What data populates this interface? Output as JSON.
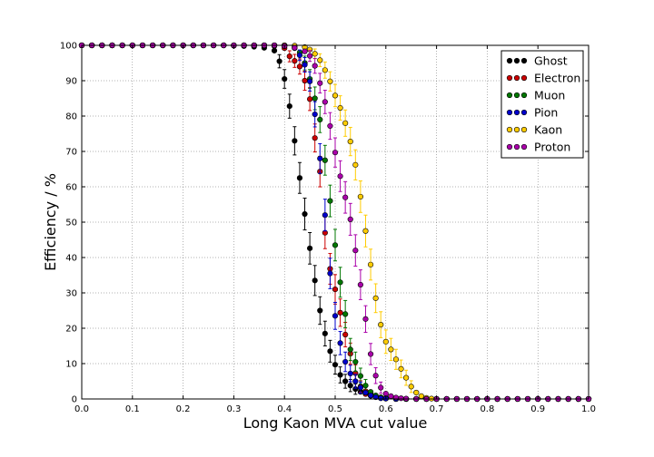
{
  "chart_data": {
    "type": "scatter",
    "title": "",
    "xlabel": "Long Kaon MVA cut value",
    "ylabel": "Efficiency / %",
    "xlim": [
      0.0,
      1.0
    ],
    "ylim": [
      0,
      100
    ],
    "xticks": [
      "0.0",
      "0.1",
      "0.2",
      "0.3",
      "0.4",
      "0.5",
      "0.6",
      "0.7",
      "0.8",
      "0.9",
      "1.0"
    ],
    "yticks": [
      "0",
      "10",
      "20",
      "30",
      "40",
      "50",
      "60",
      "70",
      "80",
      "90",
      "100"
    ],
    "grid": true,
    "legend_position": "top-right",
    "series": [
      {
        "name": "Ghost",
        "color": "#000000",
        "x": [
          0.0,
          0.02,
          0.04,
          0.06,
          0.08,
          0.1,
          0.12,
          0.14,
          0.16,
          0.18,
          0.2,
          0.22,
          0.24,
          0.26,
          0.28,
          0.3,
          0.32,
          0.34,
          0.36,
          0.38,
          0.39,
          0.4,
          0.41,
          0.42,
          0.43,
          0.44,
          0.45,
          0.46,
          0.47,
          0.48,
          0.49,
          0.5,
          0.51,
          0.52,
          0.53,
          0.54,
          0.55,
          0.56,
          0.57,
          0.58,
          0.59,
          0.6,
          0.62,
          0.64,
          0.66,
          0.68,
          0.7,
          0.72,
          0.74,
          0.76,
          0.78,
          0.8,
          0.82,
          0.84,
          0.86,
          0.88,
          0.9,
          0.92,
          0.94,
          0.96,
          0.98,
          1.0
        ],
        "y": [
          100,
          100,
          100,
          100,
          100,
          100,
          100,
          100,
          100,
          100,
          100,
          100,
          100,
          100,
          100,
          99.9,
          99.8,
          99.6,
          99.3,
          98.5,
          95.5,
          90.5,
          82.8,
          73.0,
          62.5,
          52.3,
          42.6,
          33.5,
          25.0,
          18.5,
          13.5,
          9.7,
          6.8,
          5.0,
          3.8,
          2.8,
          2.0,
          1.4,
          0.9,
          0.6,
          0.3,
          0.1,
          0,
          0,
          0,
          0,
          0,
          0,
          0,
          0,
          0,
          0,
          0,
          0,
          0,
          0,
          0,
          0,
          0,
          0,
          0,
          0
        ]
      },
      {
        "name": "Electron",
        "color": "#cc0000",
        "x": [
          0.0,
          0.02,
          0.04,
          0.06,
          0.08,
          0.1,
          0.12,
          0.14,
          0.16,
          0.18,
          0.2,
          0.22,
          0.24,
          0.26,
          0.28,
          0.3,
          0.32,
          0.34,
          0.36,
          0.38,
          0.4,
          0.41,
          0.42,
          0.43,
          0.44,
          0.45,
          0.46,
          0.47,
          0.48,
          0.49,
          0.5,
          0.51,
          0.52,
          0.53,
          0.54,
          0.55,
          0.56,
          0.57,
          0.58,
          0.59,
          0.6,
          0.62,
          0.64,
          0.66,
          0.68,
          0.7,
          0.72,
          0.74,
          0.76,
          0.78,
          0.8,
          0.82,
          0.84,
          0.86,
          0.88,
          0.9,
          0.92,
          0.94,
          0.96,
          0.98,
          1.0
        ],
        "y": [
          100,
          100,
          100,
          100,
          100,
          100,
          100,
          100,
          100,
          100,
          100,
          100,
          100,
          100,
          100,
          100,
          100,
          100,
          100,
          99.8,
          99.2,
          96.9,
          95.6,
          94.0,
          90.0,
          84.8,
          73.8,
          64.3,
          47.0,
          36.8,
          31.0,
          24.4,
          18.2,
          12.8,
          7.3,
          3.5,
          2.2,
          1.4,
          0.8,
          0.4,
          0.2,
          0,
          0,
          0,
          0,
          0,
          0,
          0,
          0,
          0,
          0,
          0,
          0,
          0,
          0,
          0,
          0,
          0,
          0,
          0,
          0
        ]
      },
      {
        "name": "Muon",
        "color": "#007700",
        "x": [
          0.0,
          0.02,
          0.04,
          0.06,
          0.08,
          0.1,
          0.12,
          0.14,
          0.16,
          0.18,
          0.2,
          0.22,
          0.24,
          0.26,
          0.28,
          0.3,
          0.32,
          0.34,
          0.36,
          0.38,
          0.4,
          0.42,
          0.43,
          0.44,
          0.45,
          0.46,
          0.47,
          0.48,
          0.49,
          0.5,
          0.51,
          0.52,
          0.53,
          0.54,
          0.55,
          0.56,
          0.57,
          0.58,
          0.59,
          0.6,
          0.62,
          0.64,
          0.66,
          0.68,
          0.7,
          0.72,
          0.74,
          0.76,
          0.78,
          0.8,
          0.82,
          0.84,
          0.86,
          0.88,
          0.9,
          0.92,
          0.94,
          0.96,
          0.98,
          1.0
        ],
        "y": [
          100,
          100,
          100,
          100,
          100,
          100,
          100,
          100,
          100,
          100,
          100,
          100,
          100,
          100,
          100,
          100,
          100,
          100,
          100,
          100,
          100,
          99.5,
          98.0,
          95.0,
          90.5,
          85.0,
          79.0,
          67.5,
          56.0,
          43.5,
          33.0,
          24.0,
          14.0,
          10.5,
          6.5,
          3.8,
          2.0,
          1.0,
          0.5,
          0.2,
          0,
          0,
          0,
          0,
          0,
          0,
          0,
          0,
          0,
          0,
          0,
          0,
          0,
          0,
          0,
          0,
          0,
          0,
          0,
          0
        ]
      },
      {
        "name": "Pion",
        "color": "#0000cc",
        "x": [
          0.0,
          0.02,
          0.04,
          0.06,
          0.08,
          0.1,
          0.12,
          0.14,
          0.16,
          0.18,
          0.2,
          0.22,
          0.24,
          0.26,
          0.28,
          0.3,
          0.32,
          0.34,
          0.36,
          0.38,
          0.4,
          0.42,
          0.43,
          0.44,
          0.45,
          0.46,
          0.47,
          0.48,
          0.49,
          0.5,
          0.51,
          0.52,
          0.53,
          0.54,
          0.55,
          0.56,
          0.57,
          0.58,
          0.59,
          0.6,
          0.62,
          0.64,
          0.66,
          0.68,
          0.7,
          0.72,
          0.74,
          0.76,
          0.78,
          0.8,
          0.82,
          0.84,
          0.86,
          0.88,
          0.9,
          0.92,
          0.94,
          0.96,
          0.98,
          1.0
        ],
        "y": [
          100,
          100,
          100,
          100,
          100,
          100,
          100,
          100,
          100,
          100,
          100,
          100,
          100,
          100,
          100,
          100,
          100,
          100,
          100,
          100,
          99.8,
          99.2,
          97.2,
          94.5,
          89.8,
          80.5,
          68.0,
          52.0,
          35.5,
          23.5,
          15.8,
          10.5,
          7.2,
          5.0,
          3.2,
          1.8,
          1.0,
          0.5,
          0.2,
          0.1,
          0,
          0,
          0,
          0,
          0,
          0,
          0,
          0,
          0,
          0,
          0,
          0,
          0,
          0,
          0,
          0,
          0,
          0,
          0,
          0
        ]
      },
      {
        "name": "Kaon",
        "color": "#ffcc00",
        "x": [
          0.0,
          0.02,
          0.04,
          0.06,
          0.08,
          0.1,
          0.12,
          0.14,
          0.16,
          0.18,
          0.2,
          0.22,
          0.24,
          0.26,
          0.28,
          0.3,
          0.32,
          0.34,
          0.36,
          0.38,
          0.4,
          0.42,
          0.44,
          0.45,
          0.46,
          0.47,
          0.48,
          0.49,
          0.5,
          0.51,
          0.52,
          0.53,
          0.54,
          0.55,
          0.56,
          0.57,
          0.58,
          0.59,
          0.6,
          0.61,
          0.62,
          0.63,
          0.64,
          0.65,
          0.66,
          0.67,
          0.68,
          0.69,
          0.7,
          0.72,
          0.74,
          0.76,
          0.78,
          0.8,
          0.82,
          0.84,
          0.86,
          0.88,
          0.9,
          0.92,
          0.94,
          0.96,
          0.98,
          1.0
        ],
        "y": [
          100,
          100,
          100,
          100,
          100,
          100,
          100,
          100,
          100,
          100,
          100,
          100,
          100,
          100,
          100,
          100,
          100,
          100,
          100,
          100,
          100,
          99.9,
          99.5,
          98.8,
          97.6,
          95.8,
          93.0,
          89.8,
          85.8,
          82.3,
          78.0,
          72.8,
          66.2,
          57.2,
          47.5,
          38.0,
          28.5,
          21.0,
          16.2,
          14.0,
          11.2,
          8.5,
          6.0,
          3.5,
          1.8,
          0.8,
          0.3,
          0.1,
          0,
          0,
          0,
          0,
          0,
          0,
          0,
          0,
          0,
          0,
          0,
          0,
          0,
          0,
          0,
          0
        ]
      },
      {
        "name": "Proton",
        "color": "#aa00aa",
        "x": [
          0.0,
          0.02,
          0.04,
          0.06,
          0.08,
          0.1,
          0.12,
          0.14,
          0.16,
          0.18,
          0.2,
          0.22,
          0.24,
          0.26,
          0.28,
          0.3,
          0.32,
          0.34,
          0.36,
          0.38,
          0.4,
          0.42,
          0.44,
          0.45,
          0.46,
          0.47,
          0.48,
          0.49,
          0.5,
          0.51,
          0.52,
          0.53,
          0.54,
          0.55,
          0.56,
          0.57,
          0.58,
          0.59,
          0.6,
          0.61,
          0.62,
          0.63,
          0.64,
          0.66,
          0.68,
          0.7,
          0.72,
          0.74,
          0.76,
          0.78,
          0.8,
          0.82,
          0.84,
          0.86,
          0.88,
          0.9,
          0.92,
          0.94,
          0.96,
          0.98,
          1.0
        ],
        "y": [
          100,
          100,
          100,
          100,
          100,
          100,
          100,
          100,
          100,
          100,
          100,
          100,
          100,
          100,
          100,
          100,
          100,
          100,
          100,
          100,
          99.8,
          99.3,
          98.3,
          97.0,
          94.2,
          89.3,
          84.0,
          77.2,
          69.7,
          63.0,
          57.0,
          50.8,
          42.0,
          32.3,
          22.6,
          12.7,
          6.6,
          3.2,
          1.5,
          0.8,
          0.4,
          0.2,
          0.1,
          0,
          0,
          0,
          0,
          0,
          0,
          0,
          0,
          0,
          0,
          0,
          0,
          0,
          0,
          0,
          0,
          0,
          0
        ]
      }
    ]
  }
}
